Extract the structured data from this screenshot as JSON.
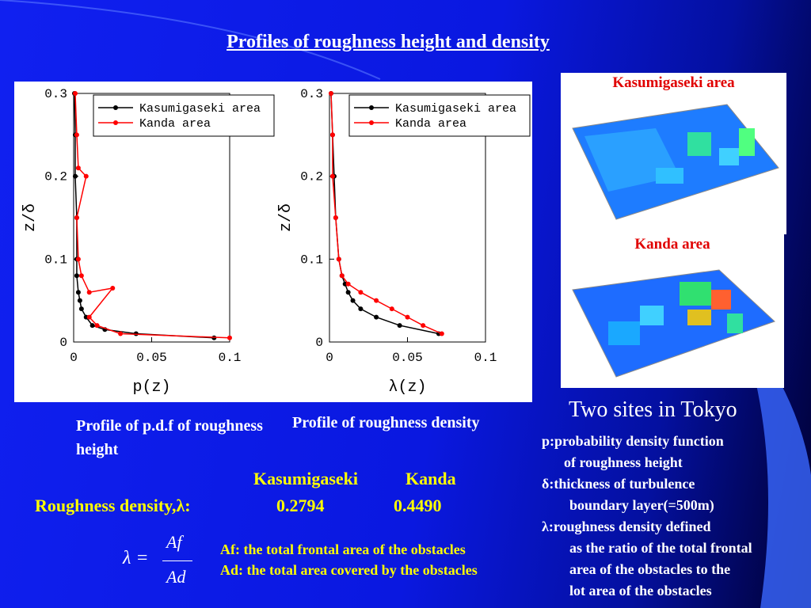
{
  "title": "Profiles of roughness height and density",
  "chart_data": [
    {
      "type": "line",
      "xlabel": "p(z)",
      "ylabel": "z/δ",
      "xlim": [
        0,
        0.1
      ],
      "xticks": [
        0,
        0.05,
        0.1
      ],
      "ylim": [
        0,
        0.3
      ],
      "yticks": [
        0,
        0.1,
        0.2,
        0.3
      ],
      "legend": "upper right",
      "series": [
        {
          "name": "Kasumigaseki area",
          "color": "#000000",
          "x": [
            0.09,
            0.04,
            0.02,
            0.012,
            0.008,
            0.005,
            0.004,
            0.003,
            0.002,
            0.002,
            0.002,
            0.001,
            0.001,
            0.0005
          ],
          "values": [
            0.005,
            0.01,
            0.015,
            0.02,
            0.03,
            0.04,
            0.05,
            0.06,
            0.08,
            0.1,
            0.15,
            0.2,
            0.25,
            0.3
          ]
        },
        {
          "name": "Kanda area",
          "color": "#ff0000",
          "x": [
            0.1,
            0.03,
            0.015,
            0.01,
            0.025,
            0.01,
            0.005,
            0.003,
            0.002,
            0.008,
            0.003,
            0.002,
            0.001
          ],
          "values": [
            0.005,
            0.01,
            0.02,
            0.03,
            0.065,
            0.06,
            0.08,
            0.1,
            0.15,
            0.2,
            0.21,
            0.25,
            0.3
          ]
        }
      ]
    },
    {
      "type": "line",
      "xlabel": "λ(z)",
      "ylabel": "z/δ",
      "xlim": [
        0,
        0.1
      ],
      "xticks": [
        0,
        0.05,
        0.1
      ],
      "ylim": [
        0,
        0.3
      ],
      "yticks": [
        0,
        0.1,
        0.2,
        0.3
      ],
      "legend": "upper right",
      "series": [
        {
          "name": "Kasumigaseki area",
          "color": "#000000",
          "x": [
            0.07,
            0.045,
            0.03,
            0.02,
            0.015,
            0.012,
            0.01,
            0.008,
            0.006,
            0.004,
            0.003,
            0.002,
            0.001
          ],
          "values": [
            0.01,
            0.02,
            0.03,
            0.04,
            0.05,
            0.06,
            0.07,
            0.08,
            0.1,
            0.15,
            0.2,
            0.25,
            0.3
          ]
        },
        {
          "name": "Kanda area",
          "color": "#ff0000",
          "x": [
            0.072,
            0.06,
            0.05,
            0.04,
            0.03,
            0.02,
            0.012,
            0.008,
            0.006,
            0.004,
            0.002,
            0.002,
            0.001
          ],
          "values": [
            0.01,
            0.02,
            0.03,
            0.04,
            0.05,
            0.06,
            0.07,
            0.08,
            0.1,
            0.15,
            0.2,
            0.25,
            0.3
          ]
        }
      ]
    }
  ],
  "captions": [
    "Profile of  p.d.f of roughness height",
    "Profile of roughness density"
  ],
  "table": {
    "header": [
      "Kasumigaseki",
      "Kanda"
    ],
    "row_label": "Roughness density,λ:",
    "values": [
      "0.2794",
      "0.4490"
    ]
  },
  "formula": {
    "lhs": "λ =",
    "numerator": "Af",
    "denominator": "Ad"
  },
  "definitions": [
    "Af: the total frontal area of the obstacles",
    "Ad: the total area covered by the obstacles"
  ],
  "images": [
    {
      "label": "Kasumigaseki area"
    },
    {
      "label": "Kanda area"
    }
  ],
  "sites_title": "Two sites in Tokyo",
  "notes": [
    "p:probability density function",
    "of roughness height",
    "δ:thickness of turbulence",
    "boundary layer(=500m)",
    "λ:roughness density defined",
    "as the ratio of the total frontal",
    "area of  the obstacles to the",
    "lot area of the obstacles"
  ]
}
